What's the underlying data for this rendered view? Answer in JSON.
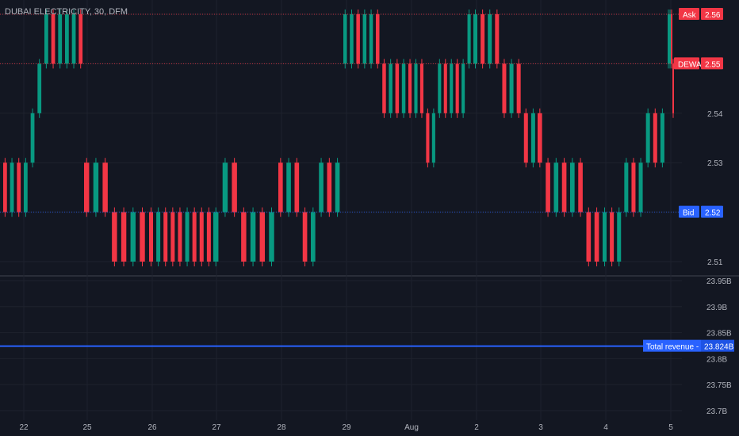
{
  "title": "DUBAI ELECTRICITY, 30, DFM",
  "colors": {
    "up": "#089981",
    "down": "#f23645",
    "background": "#131722",
    "grid": "#1e222d",
    "axis_text": "#b2b5be",
    "revenue": "#2962ff"
  },
  "chart_data": [
    {
      "type": "candlestick",
      "title": "DUBAI ELECTRICITY, 30, DFM",
      "x_ticks": [
        "22",
        "25",
        "26",
        "27",
        "28",
        "29",
        "Aug",
        "2",
        "3",
        "4",
        "5"
      ],
      "y_ticks": [
        "2.54",
        "2.53",
        "2.51"
      ],
      "ylim": [
        2.51,
        2.56
      ],
      "grid": true,
      "markers": [
        {
          "label": "Ask",
          "value": "2.56",
          "price": 2.56,
          "color": "#f23645"
        },
        {
          "label": "DEWA",
          "value": "2.55",
          "price": 2.55,
          "color": "#f23645"
        },
        {
          "label": "Bid",
          "value": "2.52",
          "price": 2.52,
          "color": "#2962ff"
        }
      ],
      "session_opens": [
        2.53,
        2.53,
        2.52,
        2.51,
        2.53,
        2.55,
        2.55,
        2.55,
        2.54,
        2.51,
        2.55
      ],
      "direction_runs": [
        {
          "session": "22",
          "pattern": "DUDUUUUDUUUD"
        },
        {
          "session": "25",
          "pattern": "DUDDDUD"
        },
        {
          "session": "26",
          "pattern": "DUDDDUDDD"
        },
        {
          "session": "27",
          "pattern": "UUDDUDU"
        },
        {
          "session": "28",
          "pattern": "DUDDUUDU"
        },
        {
          "session": "29",
          "pattern": "UUDUUDDUDU"
        },
        {
          "session": "Aug",
          "pattern": "DUDDUUDUDUU"
        },
        {
          "session": "2",
          "pattern": "UDUDDUDDU"
        },
        {
          "session": "3",
          "pattern": "DDUDUDDD"
        },
        {
          "session": "4",
          "pattern": "UDUUDUUDU"
        },
        {
          "session": "5",
          "pattern": "UUDD"
        }
      ]
    },
    {
      "type": "line",
      "series": [
        {
          "name": "Total revenue - FY",
          "values": [
            23.824
          ]
        }
      ],
      "y_ticks": [
        "23.95B",
        "23.9B",
        "23.85B",
        "23.8B",
        "23.75B",
        "23.7B"
      ],
      "ylim": [
        23.7,
        23.95
      ],
      "value_label": "23.824B"
    }
  ]
}
